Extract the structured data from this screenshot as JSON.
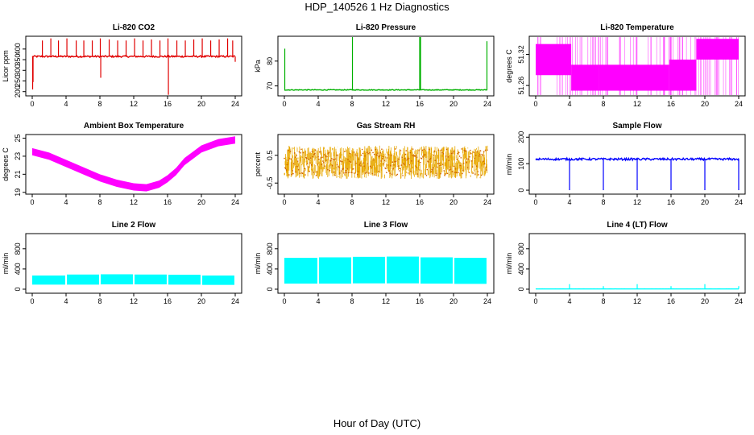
{
  "figure": {
    "title": "HDP_140526  1 Hz Diagnostics",
    "xlabel": "Hour of Day (UTC)"
  },
  "chart_data": [
    {
      "type": "line",
      "title": "Li-820 CO2",
      "ylabel": "Licor ppm",
      "color": "#e00000",
      "xlim": [
        0,
        24
      ],
      "x_ticks": [
        "0",
        "4",
        "8",
        "12",
        "16",
        "20",
        "24"
      ],
      "ylim": [
        180,
        460
      ],
      "y_ticks": [
        200,
        250,
        300,
        350,
        400
      ],
      "y_tick_labels": [
        "200",
        "250",
        "300",
        "350",
        "400"
      ],
      "baseline": 365,
      "noise": 4,
      "spikes": [
        [
          0.05,
          210
        ],
        [
          0.1,
          245
        ],
        [
          1.2,
          440
        ],
        [
          2.2,
          450
        ],
        [
          3.1,
          440
        ],
        [
          4.1,
          450
        ],
        [
          5.2,
          440
        ],
        [
          6.1,
          440
        ],
        [
          7.1,
          440
        ],
        [
          8.05,
          450
        ],
        [
          8.1,
          265
        ],
        [
          9.1,
          445
        ],
        [
          10.1,
          440
        ],
        [
          11.1,
          440
        ],
        [
          12.1,
          450
        ],
        [
          13.1,
          440
        ],
        [
          14.1,
          445
        ],
        [
          15.1,
          440
        ],
        [
          16.05,
          450
        ],
        [
          16.1,
          185
        ],
        [
          17.1,
          440
        ],
        [
          18.1,
          440
        ],
        [
          19.1,
          445
        ],
        [
          20.1,
          450
        ],
        [
          21.1,
          440
        ],
        [
          22.1,
          445
        ],
        [
          23.1,
          450
        ],
        [
          23.7,
          440
        ],
        [
          24,
          340
        ]
      ]
    },
    {
      "type": "line",
      "title": "Li-820 Pressure",
      "ylabel": "kPa",
      "color": "#00b000",
      "xlim": [
        0,
        24
      ],
      "x_ticks": [
        "0",
        "4",
        "8",
        "12",
        "16",
        "20",
        "24"
      ],
      "ylim": [
        66,
        90
      ],
      "y_ticks": [
        70,
        80
      ],
      "y_tick_labels": [
        "70",
        "80"
      ],
      "baseline": 68.4,
      "noise": 0.15,
      "spikes": [
        [
          0.05,
          85
        ],
        [
          8.05,
          90
        ],
        [
          16.0,
          90
        ],
        [
          16.1,
          90
        ],
        [
          23.95,
          88
        ]
      ]
    },
    {
      "type": "band",
      "title": "Li-820 Temperature",
      "ylabel": "degrees C",
      "color": "#ff00ff",
      "xlim": [
        0,
        24
      ],
      "x_ticks": [
        "0",
        "4",
        "8",
        "12",
        "16",
        "20",
        "24"
      ],
      "ylim": [
        51.24,
        51.355
      ],
      "y_ticks": [
        51.26,
        51.32
      ],
      "y_tick_labels": [
        "51.26",
        "51.32"
      ],
      "segments": [
        [
          0,
          4.2,
          51.28,
          51.34
        ],
        [
          4.2,
          7.5,
          51.25,
          51.3
        ],
        [
          7.5,
          15.8,
          51.25,
          51.3
        ],
        [
          15.8,
          19.0,
          51.25,
          51.31
        ],
        [
          19.0,
          24,
          51.31,
          51.35
        ]
      ]
    },
    {
      "type": "line",
      "title": "Ambient Box Temperature",
      "ylabel": "degrees C",
      "color": "#ff00ff",
      "xlim": [
        0,
        24
      ],
      "x_ticks": [
        "0",
        "4",
        "8",
        "12",
        "16",
        "20",
        "24"
      ],
      "ylim": [
        18.8,
        25.4
      ],
      "y_ticks": [
        19,
        21,
        23,
        25
      ],
      "y_tick_labels": [
        "19",
        "21",
        "23",
        "25"
      ],
      "x": [
        0,
        2,
        4,
        6,
        8,
        10,
        12,
        13.5,
        15,
        16,
        17,
        18,
        20,
        22,
        24
      ],
      "y": [
        23.5,
        23.0,
        22.2,
        21.4,
        20.6,
        20.0,
        19.6,
        19.5,
        19.9,
        20.5,
        21.3,
        22.4,
        23.8,
        24.5,
        24.8
      ],
      "band_width": 0.8
    },
    {
      "type": "line",
      "title": "Gas Stream RH",
      "ylabel": "percent",
      "color": "#e8a800",
      "xlim": [
        0,
        24
      ],
      "x_ticks": [
        "0",
        "4",
        "8",
        "12",
        "16",
        "20",
        "24"
      ],
      "ylim": [
        -0.9,
        1.25
      ],
      "y_ticks": [
        -0.5,
        0.5
      ],
      "y_tick_labels": [
        "-0.5",
        "0.5"
      ],
      "baseline": 0.25,
      "noise": 0.6
    },
    {
      "type": "line",
      "title": "Sample Flow",
      "ylabel": "ml/min",
      "color": "#0000ff",
      "xlim": [
        0,
        24
      ],
      "x_ticks": [
        "0",
        "4",
        "8",
        "12",
        "16",
        "20",
        "24"
      ],
      "ylim": [
        -15,
        210
      ],
      "y_ticks": [
        0,
        100,
        200
      ],
      "y_tick_labels": [
        "0",
        "100",
        "200"
      ],
      "baseline": 117,
      "noise": 4,
      "spikes": [
        [
          0.05,
          118
        ],
        [
          4.0,
          0
        ],
        [
          8.0,
          0
        ],
        [
          12.0,
          0
        ],
        [
          16.0,
          0
        ],
        [
          20.0,
          0
        ],
        [
          24.0,
          0
        ]
      ]
    },
    {
      "type": "band",
      "title": "Line 2 Flow",
      "ylabel": "ml/min",
      "color": "#00ffff",
      "xlim": [
        0,
        24
      ],
      "x_ticks": [
        "0",
        "4",
        "8",
        "12",
        "16",
        "20",
        "24"
      ],
      "ylim": [
        -80,
        1100
      ],
      "y_ticks": [
        0,
        400,
        800
      ],
      "y_tick_labels": [
        "0",
        "400",
        "800"
      ],
      "segments": [
        [
          0,
          3.9,
          90,
          270
        ],
        [
          4.1,
          7.9,
          90,
          290
        ],
        [
          8.1,
          11.9,
          95,
          295
        ],
        [
          12.1,
          15.9,
          95,
          290
        ],
        [
          16.1,
          19.9,
          90,
          285
        ],
        [
          20.1,
          23.9,
          85,
          270
        ]
      ]
    },
    {
      "type": "band",
      "title": "Line 3 Flow",
      "ylabel": "ml/min",
      "color": "#00ffff",
      "xlim": [
        0,
        24
      ],
      "x_ticks": [
        "0",
        "4",
        "8",
        "12",
        "16",
        "20",
        "24"
      ],
      "ylim": [
        -80,
        1100
      ],
      "y_ticks": [
        0,
        400,
        800
      ],
      "y_tick_labels": [
        "0",
        "400",
        "800"
      ],
      "segments": [
        [
          0,
          3.9,
          110,
          620
        ],
        [
          4.1,
          7.9,
          110,
          630
        ],
        [
          8.1,
          11.9,
          115,
          640
        ],
        [
          12.1,
          15.9,
          115,
          645
        ],
        [
          16.1,
          19.9,
          110,
          630
        ],
        [
          20.1,
          23.9,
          105,
          620
        ]
      ]
    },
    {
      "type": "line",
      "title": "Line 4 (LT) Flow",
      "ylabel": "ml/min",
      "color": "#00ffff",
      "xlim": [
        0,
        24
      ],
      "x_ticks": [
        "0",
        "4",
        "8",
        "12",
        "16",
        "20",
        "24"
      ],
      "ylim": [
        -80,
        1100
      ],
      "y_ticks": [
        0,
        400,
        800
      ],
      "y_tick_labels": [
        "0",
        "400",
        "800"
      ],
      "baseline": 5,
      "noise": 1,
      "spikes": [
        [
          4.0,
          100
        ],
        [
          8.0,
          60
        ],
        [
          12.0,
          100
        ],
        [
          16.0,
          60
        ],
        [
          20.0,
          100
        ],
        [
          24.0,
          60
        ]
      ]
    }
  ]
}
